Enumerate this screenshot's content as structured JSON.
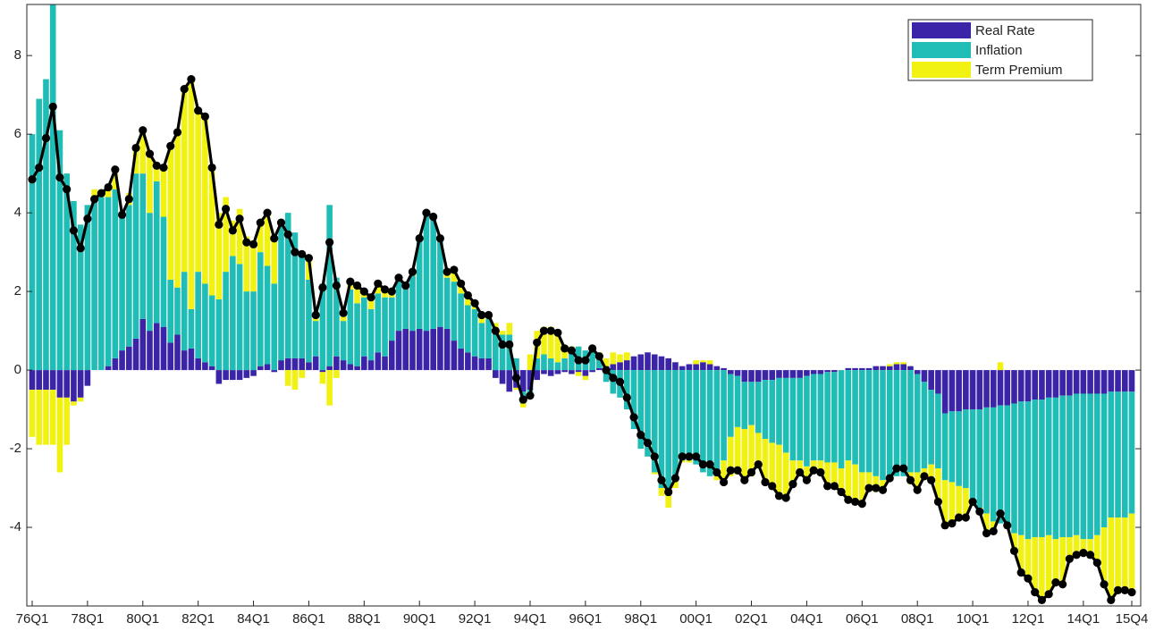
{
  "chart_data": {
    "type": "bar",
    "stacked": true,
    "legend": "northeast",
    "categories": [
      "76Q1",
      null,
      null,
      null,
      null,
      null,
      null,
      null,
      "78Q1",
      null,
      null,
      null,
      null,
      null,
      null,
      null,
      "80Q1",
      null,
      null,
      null,
      null,
      null,
      null,
      null,
      "82Q1",
      null,
      null,
      null,
      null,
      null,
      null,
      null,
      "84Q1",
      null,
      null,
      null,
      null,
      null,
      null,
      null,
      "86Q1",
      null,
      null,
      null,
      null,
      null,
      null,
      null,
      "88Q1",
      null,
      null,
      null,
      null,
      null,
      null,
      null,
      "90Q1",
      null,
      null,
      null,
      null,
      null,
      null,
      null,
      "92Q1",
      null,
      null,
      null,
      null,
      null,
      null,
      null,
      "94Q1",
      null,
      null,
      null,
      null,
      null,
      null,
      null,
      "96Q1",
      null,
      null,
      null,
      null,
      null,
      null,
      null,
      "98Q1",
      null,
      null,
      null,
      null,
      null,
      null,
      null,
      "00Q1",
      null,
      null,
      null,
      null,
      null,
      null,
      null,
      "02Q1",
      null,
      null,
      null,
      null,
      null,
      null,
      null,
      "04Q1",
      null,
      null,
      null,
      null,
      null,
      null,
      null,
      "06Q1",
      null,
      null,
      null,
      null,
      null,
      null,
      null,
      "08Q1",
      null,
      null,
      null,
      null,
      null,
      null,
      null,
      "10Q1",
      null,
      null,
      null,
      null,
      null,
      null,
      null,
      "12Q1",
      null,
      null,
      null,
      null,
      null,
      null,
      null,
      "14Q1",
      null,
      null,
      null,
      null,
      null,
      null,
      "15Q4"
    ],
    "series": [
      {
        "name": "Real Rate",
        "color": "#3b24a8",
        "values": [
          -0.5,
          -0.5,
          -0.5,
          -0.5,
          -0.7,
          -0.7,
          -0.8,
          -0.7,
          -0.4,
          0,
          0,
          0.1,
          0.3,
          0.5,
          0.6,
          0.8,
          1.3,
          1.0,
          1.2,
          1.1,
          0.7,
          0.9,
          0.5,
          0.55,
          0.3,
          0.2,
          0.1,
          -0.35,
          -0.25,
          -0.25,
          -0.25,
          -0.2,
          -0.15,
          0.1,
          0.15,
          -0.05,
          0.25,
          0.3,
          0.3,
          0.3,
          0.2,
          0.35,
          -0.05,
          0.1,
          0.35,
          0.25,
          0.15,
          0.1,
          0.35,
          0.25,
          0.45,
          0.35,
          0.75,
          1.0,
          1.05,
          1.0,
          1.05,
          1.0,
          1.05,
          1.1,
          1.05,
          0.75,
          0.55,
          0.45,
          0.35,
          0.3,
          0.3,
          -0.2,
          -0.35,
          -0.55,
          -0.45,
          -0.55,
          -0.5,
          -0.25,
          -0.1,
          -0.15,
          -0.1,
          -0.05,
          -0.1,
          -0.05,
          -0.15,
          -0.05,
          0.05,
          0.1,
          0.15,
          0.2,
          0.25,
          0.35,
          0.4,
          0.45,
          0.4,
          0.35,
          0.3,
          0.2,
          0.1,
          0.15,
          0.15,
          0.2,
          0.15,
          0.1,
          0.05,
          -0.1,
          -0.15,
          -0.3,
          -0.3,
          -0.3,
          -0.25,
          -0.25,
          -0.2,
          -0.2,
          -0.2,
          -0.2,
          -0.15,
          -0.1,
          -0.1,
          -0.05,
          -0.05,
          0,
          0.05,
          0.05,
          0.05,
          0.05,
          0.1,
          0.1,
          0.1,
          0.15,
          0.15,
          0.1,
          -0.1,
          -0.3,
          -0.5,
          -0.6,
          -1.1,
          -1.05,
          -1.05,
          -1.0,
          -1.0,
          -1.0,
          -0.95,
          -0.95,
          -0.9,
          -0.9,
          -0.85,
          -0.8,
          -0.8,
          -0.75,
          -0.75,
          -0.7,
          -0.7,
          -0.65,
          -0.65,
          -0.6,
          -0.6,
          -0.6,
          -0.6,
          -0.6,
          -0.55,
          -0.55,
          -0.55,
          -0.55
        ]
      },
      {
        "name": "Inflation",
        "color": "#1fbdb5",
        "values": [
          6.0,
          6.9,
          7.4,
          9.3,
          6.1,
          5.0,
          4.3,
          3.7,
          4.2,
          4.4,
          4.4,
          4.3,
          4.3,
          3.4,
          3.6,
          4.2,
          3.7,
          3.0,
          3.6,
          2.8,
          1.6,
          1.2,
          2.0,
          1.0,
          2.2,
          2.0,
          1.8,
          1.8,
          2.5,
          2.9,
          2.7,
          2.0,
          2.0,
          2.9,
          2.5,
          2.2,
          3.4,
          3.7,
          3.2,
          2.7,
          2.1,
          0.9,
          2.2,
          4.1,
          2.0,
          1.0,
          1.9,
          1.6,
          1.5,
          1.3,
          1.5,
          1.5,
          1.1,
          1.3,
          1.1,
          1.4,
          2.3,
          3.0,
          2.8,
          2.2,
          1.3,
          1.5,
          1.4,
          1.2,
          1.2,
          0.9,
          1.0,
          1.0,
          0.9,
          0.9,
          0.3,
          -0.3,
          -0.1,
          0.3,
          0.4,
          0.3,
          0.2,
          0.3,
          0.5,
          0.6,
          0.5,
          0.5,
          0.3,
          -0.3,
          -0.6,
          -0.7,
          -1.0,
          -1.5,
          -2.0,
          -2.2,
          -2.6,
          -3.0,
          -3.2,
          -2.8,
          -2.3,
          -2.3,
          -2.4,
          -2.6,
          -2.7,
          -2.7,
          -2.3,
          -1.6,
          -1.3,
          -1.2,
          -1.1,
          -1.3,
          -1.5,
          -1.6,
          -1.7,
          -1.9,
          -2.1,
          -2.1,
          -2.3,
          -2.2,
          -2.2,
          -2.3,
          -2.3,
          -2.5,
          -2.3,
          -2.4,
          -2.6,
          -2.6,
          -2.7,
          -2.8,
          -2.8,
          -2.7,
          -2.7,
          -2.6,
          -2.5,
          -2.2,
          -1.9,
          -1.9,
          -1.7,
          -1.8,
          -1.9,
          -2.0,
          -2.3,
          -2.5,
          -2.7,
          -2.9,
          -3.0,
          -3.1,
          -3.3,
          -3.4,
          -3.5,
          -3.5,
          -3.5,
          -3.5,
          -3.6,
          -3.6,
          -3.6,
          -3.6,
          -3.7,
          -3.7,
          -3.6,
          -3.4,
          -3.2,
          -3.2,
          -3.2,
          -3.1
        ]
      },
      {
        "name": "Term Premium",
        "color": "#f2f212",
        "values": [
          -1.2,
          -1.4,
          -1.4,
          -1.4,
          -1.9,
          -1.2,
          -0.1,
          -0.1,
          0,
          0.2,
          0.15,
          0.3,
          0.5,
          0.05,
          0.3,
          0.7,
          1.1,
          1.5,
          0.4,
          1.3,
          3.4,
          3.9,
          4.6,
          5.8,
          4.1,
          4.3,
          3.3,
          2.2,
          1.9,
          0.9,
          1.4,
          1.4,
          1.3,
          0.8,
          1.3,
          1.2,
          0.1,
          -0.4,
          -0.5,
          -0.2,
          0.5,
          0.1,
          -0.3,
          -0.9,
          -0.2,
          0.2,
          0.2,
          0.5,
          0.2,
          0.3,
          0.3,
          0.2,
          0.1,
          0.1,
          0,
          0.1,
          0,
          0,
          0,
          0,
          0.2,
          0.3,
          0.25,
          0.25,
          0.15,
          0.2,
          0.1,
          0.2,
          0.1,
          0.3,
          -0.05,
          -0.1,
          0.4,
          0.7,
          0.7,
          0.8,
          0.8,
          0.3,
          0.1,
          -0.1,
          -0.1,
          0.1,
          0.1,
          0.2,
          0.3,
          0.2,
          0.2,
          0,
          0,
          0,
          -0.05,
          -0.2,
          -0.3,
          -0.2,
          -0.05,
          -0.05,
          0.1,
          0.05,
          0.1,
          -0.1,
          -0.6,
          -1.0,
          -1.2,
          -1.3,
          -1.3,
          -0.9,
          -1.1,
          -1.1,
          -1.3,
          -1.2,
          -0.6,
          -0.3,
          -0.3,
          -0.2,
          -0.3,
          -0.6,
          -0.6,
          -0.6,
          -1.0,
          -1.0,
          -0.8,
          -0.4,
          -0.4,
          -0.3,
          0.05,
          0.05,
          0.05,
          -0.3,
          -0.5,
          -0.2,
          -0.4,
          -0.9,
          -1.2,
          -1.1,
          -0.8,
          -0.8,
          -0.1,
          -0.1,
          -0.5,
          -0.3,
          0.2,
          0,
          -0.5,
          -1.0,
          -1.0,
          -1.4,
          -1.6,
          -1.5,
          -1.1,
          -1.2,
          -0.6,
          -0.5,
          -0.4,
          -0.4,
          -0.7,
          -1.4,
          -2.1,
          -1.9,
          -1.9,
          -2.0
        ]
      }
    ],
    "line": {
      "color": "#000000",
      "values": [
        4.85,
        5.15,
        5.9,
        6.7,
        4.9,
        4.6,
        3.55,
        3.1,
        3.85,
        4.35,
        4.5,
        4.65,
        5.1,
        3.95,
        4.35,
        5.65,
        6.1,
        5.5,
        5.2,
        5.15,
        5.7,
        6.05,
        7.15,
        7.4,
        6.6,
        6.45,
        5.15,
        3.7,
        4.1,
        3.55,
        3.85,
        3.25,
        3.2,
        3.75,
        4.0,
        3.35,
        3.75,
        3.45,
        3.0,
        2.95,
        2.85,
        1.4,
        2.1,
        3.25,
        2.15,
        1.45,
        2.25,
        2.15,
        2.0,
        1.85,
        2.2,
        2.05,
        2.0,
        2.35,
        2.15,
        2.5,
        3.35,
        4.0,
        3.9,
        3.35,
        2.5,
        2.55,
        2.2,
        1.9,
        1.7,
        1.4,
        1.4,
        1.0,
        0.65,
        0.65,
        -0.2,
        -0.75,
        -0.65,
        0.7,
        1.0,
        1.0,
        0.95,
        0.55,
        0.5,
        0.25,
        0.25,
        0.55,
        0.35,
        0,
        -0.2,
        -0.3,
        -0.7,
        -1.2,
        -1.65,
        -1.85,
        -2.2,
        -2.8,
        -3.1,
        -2.75,
        -2.2,
        -2.2,
        -2.2,
        -2.4,
        -2.4,
        -2.6,
        -2.85,
        -2.55,
        -2.55,
        -2.8,
        -2.6,
        -2.4,
        -2.85,
        -2.95,
        -3.2,
        -3.25,
        -2.9,
        -2.6,
        -2.8,
        -2.55,
        -2.6,
        -2.95,
        -2.95,
        -3.1,
        -3.3,
        -3.35,
        -3.4,
        -3.0,
        -3.0,
        -3.05,
        -2.75,
        -2.5,
        -2.5,
        -2.8,
        -3.05,
        -2.7,
        -2.8,
        -3.35,
        -3.95,
        -3.9,
        -3.75,
        -3.75,
        -3.35,
        -3.6,
        -4.15,
        -4.1,
        -3.65,
        -3.95,
        -4.6,
        -5.15,
        -5.3,
        -5.65,
        -5.85,
        -5.7,
        -5.4,
        -5.45,
        -4.8,
        -4.7,
        -4.65,
        -4.7,
        -4.9,
        -5.45,
        -5.85,
        -5.6,
        -5.6,
        -5.65
      ]
    },
    "ylim": [
      -6,
      9.3
    ],
    "yticks": [
      -4,
      -2,
      0,
      2,
      4,
      6,
      8
    ]
  }
}
